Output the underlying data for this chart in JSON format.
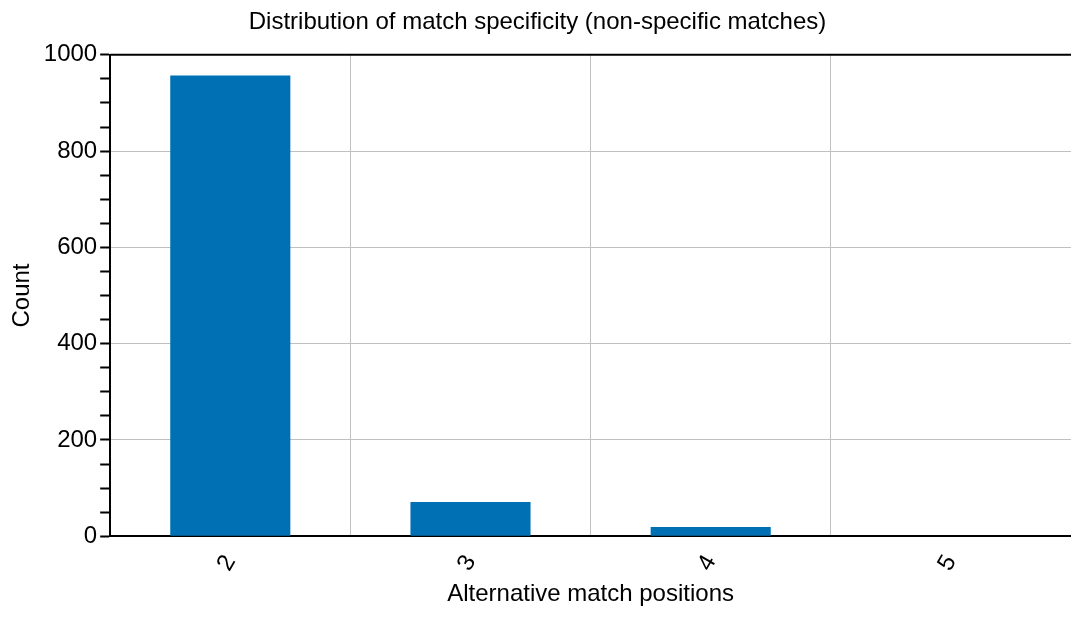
{
  "chart_data": {
    "type": "bar",
    "title": "Distribution of match specificity (non-specific matches)",
    "xlabel": "Alternative match positions",
    "ylabel": "Count",
    "categories": [
      "2",
      "3",
      "4",
      "5"
    ],
    "values": [
      957,
      71,
      19,
      0
    ],
    "color": "#0070b4",
    "ylim": [
      0,
      1000
    ],
    "yticks": [
      0,
      {
        "value": 50,
        "label": null
      },
      200,
      {
        "value": 100,
        "label": null
      },
      {
        "value": 150,
        "label": null
      },
      {
        "value": 250,
        "label": null
      },
      {
        "value": 300,
        "label": null
      },
      {
        "value": 350,
        "label": null
      },
      400,
      {
        "value": 450,
        "label": null
      },
      {
        "value": 500,
        "label": null
      },
      {
        "value": 550,
        "label": null
      },
      600,
      {
        "value": 650,
        "label": null
      },
      {
        "value": 700,
        "label": null
      },
      {
        "value": 750,
        "label": null
      },
      800,
      {
        "value": 850,
        "label": null
      },
      {
        "value": 900,
        "label": null
      },
      {
        "value": 950,
        "label": null
      },
      1000
    ],
    "grid": true
  }
}
